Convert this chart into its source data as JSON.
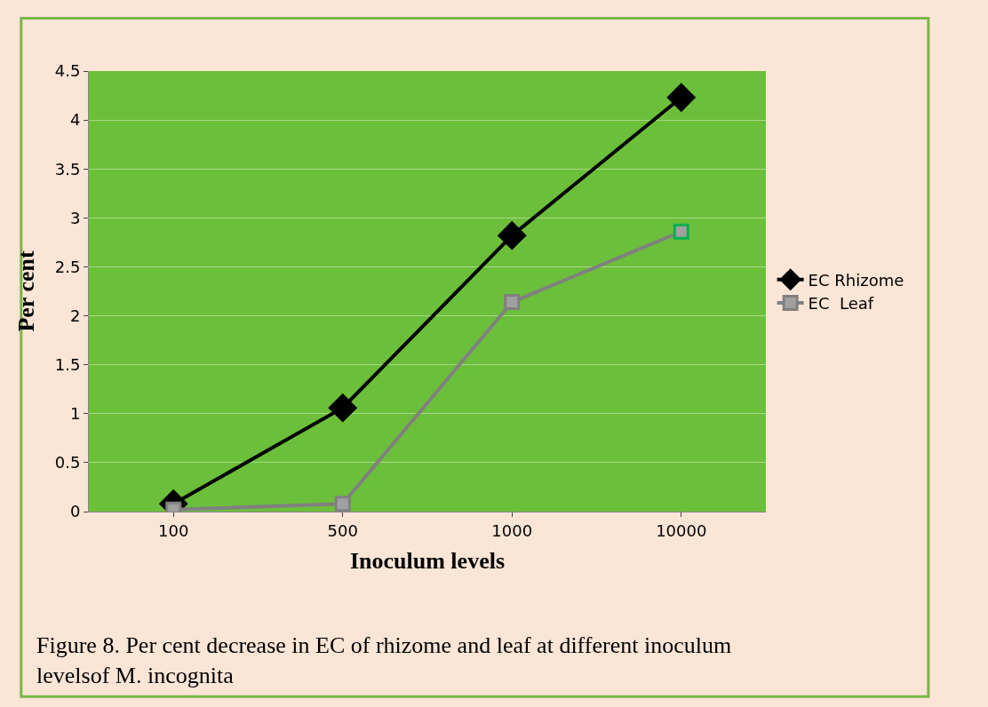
{
  "chart_data": {
    "type": "line",
    "xlabel": "Inoculum levels",
    "ylabel": "Per cent",
    "categories": [
      "100",
      "500",
      "1000",
      "10000"
    ],
    "series": [
      {
        "name": "EC Rhizome",
        "color": "#000000",
        "marker": "diamond",
        "values": [
          0.08,
          1.06,
          2.82,
          4.23
        ]
      },
      {
        "name": "EC  Leaf",
        "color": "#808080",
        "colors": [
          "#808080",
          "#808080",
          "#808080",
          "#00b050"
        ],
        "marker": "square",
        "values": [
          0.02,
          0.08,
          2.14,
          2.86
        ]
      }
    ],
    "ylim": [
      0,
      4.5
    ],
    "yticks": [
      0,
      0.5,
      1,
      1.5,
      2,
      2.5,
      3,
      3.5,
      4,
      4.5
    ],
    "grid": "y",
    "legend": "right",
    "line_style": "solid",
    "annotations": [
      "Figure 8. Per cent decrease in EC of rhizome and leaf at different inoculum\nlevelsof M. incognita"
    ]
  }
}
